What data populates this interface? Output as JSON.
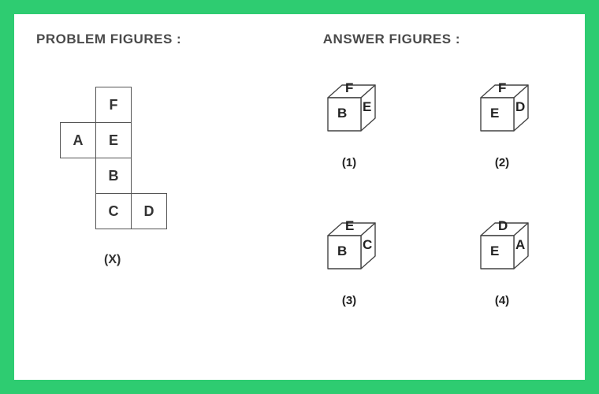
{
  "headings": {
    "problem": "PROBLEM FIGURES :",
    "answer": "ANSWER FIGURES :"
  },
  "problem": {
    "label": "(X)",
    "cell_size": 46,
    "stroke": "#555555",
    "text_color": "#333333",
    "cells": [
      {
        "letter": "F",
        "col": 1,
        "row": 0
      },
      {
        "letter": "A",
        "col": 0,
        "row": 1
      },
      {
        "letter": "E",
        "col": 1,
        "row": 1
      },
      {
        "letter": "B",
        "col": 1,
        "row": 2
      },
      {
        "letter": "C",
        "col": 1,
        "row": 3
      },
      {
        "letter": "D",
        "col": 2,
        "row": 3
      }
    ]
  },
  "cube_style": {
    "stroke": "#444444",
    "stroke_width": 1.4,
    "fill": "#ffffff"
  },
  "answers": [
    {
      "label": "(1)",
      "top": "F",
      "front": "B",
      "right": "E"
    },
    {
      "label": "(2)",
      "top": "F",
      "front": "E",
      "right": "D"
    },
    {
      "label": "(3)",
      "top": "E",
      "front": "B",
      "right": "C"
    },
    {
      "label": "(4)",
      "top": "D",
      "front": "E",
      "right": "A"
    }
  ]
}
